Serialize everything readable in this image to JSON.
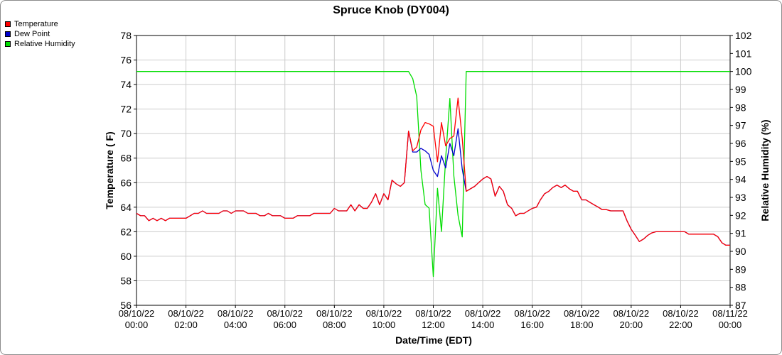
{
  "chart_data": {
    "type": "line",
    "title": "Spruce Knob (DY004)",
    "xlabel": "Date/Time (EDT)",
    "ylabel": "Temperature ( F)",
    "y2label": "Relative Humidity (%)",
    "ylim": [
      56,
      78
    ],
    "y2lim": [
      87,
      102
    ],
    "yticks": [
      "56",
      "58",
      "60",
      "62",
      "64",
      "66",
      "68",
      "70",
      "72",
      "74",
      "76",
      "78"
    ],
    "y2ticks": [
      "87",
      "88",
      "89",
      "90",
      "91",
      "92",
      "93",
      "94",
      "95",
      "96",
      "97",
      "98",
      "99",
      "100",
      "101",
      "102"
    ],
    "xlim": [
      0,
      24
    ],
    "xticks": [
      {
        "date": "08/10/22",
        "time": "00:00"
      },
      {
        "date": "08/10/22",
        "time": "02:00"
      },
      {
        "date": "08/10/22",
        "time": "04:00"
      },
      {
        "date": "08/10/22",
        "time": "06:00"
      },
      {
        "date": "08/10/22",
        "time": "08:00"
      },
      {
        "date": "08/10/22",
        "time": "10:00"
      },
      {
        "date": "08/10/22",
        "time": "12:00"
      },
      {
        "date": "08/10/22",
        "time": "14:00"
      },
      {
        "date": "08/10/22",
        "time": "16:00"
      },
      {
        "date": "08/10/22",
        "time": "18:00"
      },
      {
        "date": "08/10/22",
        "time": "20:00"
      },
      {
        "date": "08/10/22",
        "time": "22:00"
      },
      {
        "date": "08/11/22",
        "time": "00:00"
      }
    ],
    "grid": true,
    "legend_position": "top-left",
    "series": [
      {
        "name": "Temperature",
        "color": "#ff0000",
        "axis": "left",
        "x": [
          0,
          0.17,
          0.33,
          0.5,
          0.67,
          0.83,
          1.0,
          1.17,
          1.33,
          1.5,
          1.67,
          2.0,
          2.17,
          2.33,
          2.5,
          2.67,
          2.83,
          3.0,
          3.17,
          3.33,
          3.5,
          3.67,
          3.83,
          4.0,
          4.17,
          4.33,
          4.5,
          4.67,
          4.83,
          5.0,
          5.17,
          5.33,
          5.5,
          5.67,
          5.83,
          6.0,
          6.17,
          6.33,
          6.5,
          6.67,
          6.83,
          7.0,
          7.17,
          7.33,
          7.5,
          7.67,
          7.83,
          8.0,
          8.17,
          8.33,
          8.5,
          8.67,
          8.83,
          9.0,
          9.17,
          9.33,
          9.5,
          9.67,
          9.83,
          10.0,
          10.17,
          10.33,
          10.5,
          10.67,
          10.83,
          11.0,
          11.17,
          11.33,
          11.5,
          11.67,
          11.83,
          12.0,
          12.17,
          12.33,
          12.5,
          12.67,
          12.83,
          13.0,
          13.17,
          13.33,
          13.5,
          13.67,
          13.83,
          14.0,
          14.17,
          14.33,
          14.5,
          14.67,
          14.83,
          15.0,
          15.17,
          15.33,
          15.5,
          15.67,
          15.83,
          16.0,
          16.17,
          16.33,
          16.5,
          16.67,
          16.83,
          17.0,
          17.17,
          17.33,
          17.5,
          17.67,
          17.83,
          18.0,
          18.17,
          18.33,
          18.5,
          18.67,
          18.83,
          19.0,
          19.17,
          19.33,
          19.5,
          19.67,
          19.83,
          20.0,
          20.17,
          20.33,
          20.5,
          20.67,
          20.83,
          21.0,
          21.17,
          21.33,
          21.5,
          21.67,
          21.83,
          22.0,
          22.17,
          22.33,
          22.5,
          22.67,
          22.83,
          23.0,
          23.17,
          23.33,
          23.5,
          23.67,
          23.83,
          24.0
        ],
        "values": [
          63.5,
          63.3,
          63.3,
          62.9,
          63.1,
          62.9,
          63.1,
          62.9,
          63.1,
          63.1,
          63.1,
          63.1,
          63.3,
          63.5,
          63.5,
          63.7,
          63.5,
          63.5,
          63.5,
          63.5,
          63.7,
          63.7,
          63.5,
          63.7,
          63.7,
          63.7,
          63.5,
          63.5,
          63.5,
          63.3,
          63.3,
          63.5,
          63.3,
          63.3,
          63.3,
          63.1,
          63.1,
          63.1,
          63.3,
          63.3,
          63.3,
          63.3,
          63.5,
          63.5,
          63.5,
          63.5,
          63.5,
          63.9,
          63.7,
          63.7,
          63.7,
          64.2,
          63.7,
          64.2,
          63.9,
          63.9,
          64.4,
          65.1,
          64.2,
          65.1,
          64.6,
          66.2,
          65.9,
          65.7,
          66.0,
          70.2,
          68.6,
          68.9,
          70.3,
          70.9,
          70.8,
          70.6,
          67.7,
          70.9,
          69.0,
          69.6,
          69.8,
          72.9,
          69.6,
          65.3,
          65.5,
          65.7,
          66.0,
          66.3,
          66.5,
          66.3,
          64.9,
          65.7,
          65.3,
          64.2,
          63.9,
          63.3,
          63.5,
          63.5,
          63.7,
          63.9,
          64.0,
          64.6,
          65.1,
          65.3,
          65.6,
          65.8,
          65.6,
          65.8,
          65.5,
          65.3,
          65.3,
          64.6,
          64.6,
          64.4,
          64.2,
          64.0,
          63.8,
          63.8,
          63.7,
          63.7,
          63.7,
          63.7,
          62.9,
          62.2,
          61.7,
          61.2,
          61.4,
          61.7,
          61.9,
          62.0,
          62.0,
          62.0,
          62.0,
          62.0,
          62.0,
          62.0,
          62.0,
          61.8,
          61.8,
          61.8,
          61.8,
          61.8,
          61.8,
          61.8,
          61.6,
          61.1,
          60.9,
          60.9
        ]
      },
      {
        "name": "Dew Point",
        "color": "#0000cc",
        "axis": "left",
        "x": [
          0,
          0.17,
          0.33,
          0.5,
          0.67,
          0.83,
          1.0,
          1.17,
          1.33,
          1.5,
          1.67,
          2.0,
          2.17,
          2.33,
          2.5,
          2.67,
          2.83,
          3.0,
          3.17,
          3.33,
          3.5,
          3.67,
          3.83,
          4.0,
          4.17,
          4.33,
          4.5,
          4.67,
          4.83,
          5.0,
          5.17,
          5.33,
          5.5,
          5.67,
          5.83,
          6.0,
          6.17,
          6.33,
          6.5,
          6.67,
          6.83,
          7.0,
          7.17,
          7.33,
          7.5,
          7.67,
          7.83,
          8.0,
          8.17,
          8.33,
          8.5,
          8.67,
          8.83,
          9.0,
          9.17,
          9.33,
          9.5,
          9.67,
          9.83,
          10.0,
          10.17,
          10.33,
          10.5,
          10.67,
          10.83,
          11.0,
          11.17,
          11.33,
          11.5,
          11.67,
          11.83,
          12.0,
          12.17,
          12.33,
          12.5,
          12.67,
          12.83,
          13.0,
          13.17,
          13.33,
          13.5,
          13.67,
          13.83,
          14.0,
          14.17,
          14.33,
          14.5,
          14.67,
          14.83,
          15.0,
          15.17,
          15.33,
          15.5,
          15.67,
          15.83,
          16.0,
          16.17,
          16.33,
          16.5,
          16.67,
          16.83,
          17.0,
          17.17,
          17.33,
          17.5,
          17.67,
          17.83,
          18.0,
          18.17,
          18.33,
          18.5,
          18.67,
          18.83,
          19.0,
          19.17,
          19.33,
          19.5,
          19.67,
          19.83,
          20.0,
          20.17,
          20.33,
          20.5,
          20.67,
          20.83,
          21.0,
          21.17,
          21.33,
          21.5,
          21.67,
          21.83,
          22.0,
          22.17,
          22.33,
          22.5,
          22.67,
          22.83,
          23.0,
          23.17,
          23.33,
          23.5,
          23.67,
          23.83,
          24.0
        ],
        "values": [
          63.5,
          63.3,
          63.3,
          62.9,
          63.1,
          62.9,
          63.1,
          62.9,
          63.1,
          63.1,
          63.1,
          63.1,
          63.3,
          63.5,
          63.5,
          63.7,
          63.5,
          63.5,
          63.5,
          63.5,
          63.7,
          63.7,
          63.5,
          63.7,
          63.7,
          63.7,
          63.5,
          63.5,
          63.5,
          63.3,
          63.3,
          63.5,
          63.3,
          63.3,
          63.3,
          63.1,
          63.1,
          63.1,
          63.3,
          63.3,
          63.3,
          63.3,
          63.5,
          63.5,
          63.5,
          63.5,
          63.5,
          63.9,
          63.7,
          63.7,
          63.7,
          64.2,
          63.7,
          64.2,
          63.9,
          63.9,
          64.4,
          65.1,
          64.2,
          65.1,
          64.6,
          66.2,
          65.9,
          65.7,
          66.0,
          70.2,
          68.5,
          68.5,
          68.8,
          68.6,
          68.3,
          67.0,
          66.5,
          68.2,
          67.2,
          69.2,
          68.2,
          70.4,
          67.1,
          65.3,
          65.5,
          65.7,
          66.0,
          66.3,
          66.5,
          66.3,
          64.9,
          65.7,
          65.3,
          64.2,
          63.9,
          63.3,
          63.5,
          63.5,
          63.7,
          63.9,
          64.0,
          64.6,
          65.1,
          65.3,
          65.6,
          65.8,
          65.6,
          65.8,
          65.5,
          65.3,
          65.3,
          64.6,
          64.6,
          64.4,
          64.2,
          64.0,
          63.8,
          63.8,
          63.7,
          63.7,
          63.7,
          63.7,
          62.9,
          62.2,
          61.7,
          61.2,
          61.4,
          61.7,
          61.9,
          62.0,
          62.0,
          62.0,
          62.0,
          62.0,
          62.0,
          62.0,
          62.0,
          61.8,
          61.8,
          61.8,
          61.8,
          61.8,
          61.8,
          61.8,
          61.6,
          61.1,
          60.9,
          60.9
        ]
      },
      {
        "name": "Relative Humidity",
        "color": "#00dd00",
        "axis": "right",
        "x": [
          0,
          11.0,
          11.17,
          11.33,
          11.5,
          11.67,
          11.83,
          12.0,
          12.17,
          12.33,
          12.5,
          12.67,
          12.83,
          13.0,
          13.17,
          13.33,
          24.0
        ],
        "values": [
          100,
          100,
          99.6,
          98.6,
          94.5,
          92.6,
          92.4,
          88.6,
          93.5,
          91.1,
          95.2,
          98.5,
          94.2,
          92.0,
          90.8,
          100,
          100
        ]
      }
    ]
  }
}
